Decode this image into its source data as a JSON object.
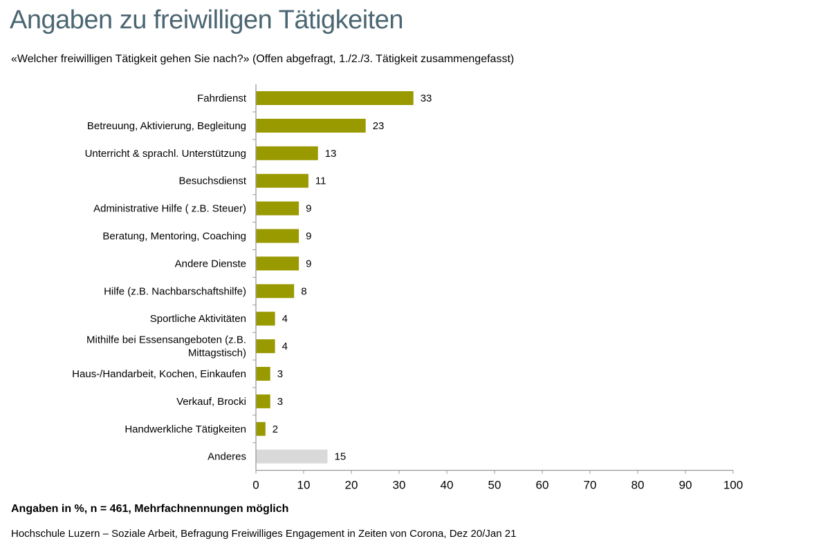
{
  "title": "Angaben zu freiwilligen Tätigkeiten",
  "subtitle": "«Welcher freiwilligen  Tätigkeit gehen Sie nach?» (Offen abgefragt, 1./2./3. Tätigkeit zusammengefasst)",
  "note": "Angaben in %,  n = 461, Mehrfachnennungen möglich",
  "source": "Hochschule Luzern – Soziale Arbeit, Befragung  Freiwilliges Engagement in Zeiten von Corona, Dez 20/Jan 21",
  "chart_data": {
    "type": "bar",
    "orientation": "horizontal",
    "categories": [
      "Fahrdienst",
      "Betreuung, Aktivierung, Begleitung",
      "Unterricht & sprachl. Unterstützung",
      "Besuchsdienst",
      "Administrative Hilfe ( z.B. Steuer)",
      "Beratung, Mentoring, Coaching",
      "Andere Dienste",
      "Hilfe (z.B. Nachbarschaftshilfe)",
      "Sportliche Aktivitäten",
      "Mithilfe bei Essensangeboten (z.B.\nMittagstisch)",
      "Haus-/Handarbeit, Kochen, Einkaufen",
      "Verkauf, Brocki",
      "Handwerkliche Tätigkeiten",
      "Anderes"
    ],
    "values": [
      33,
      23,
      13,
      11,
      9,
      9,
      9,
      8,
      4,
      4,
      3,
      3,
      2,
      15
    ],
    "bar_colors": [
      "#999900",
      "#999900",
      "#999900",
      "#999900",
      "#999900",
      "#999900",
      "#999900",
      "#999900",
      "#999900",
      "#999900",
      "#999900",
      "#999900",
      "#999900",
      "#d9d9d9"
    ],
    "xlim": [
      0,
      100
    ],
    "xticks": [
      0,
      10,
      20,
      30,
      40,
      50,
      60,
      70,
      80,
      90,
      100
    ],
    "grid": false,
    "data_labels": true
  }
}
